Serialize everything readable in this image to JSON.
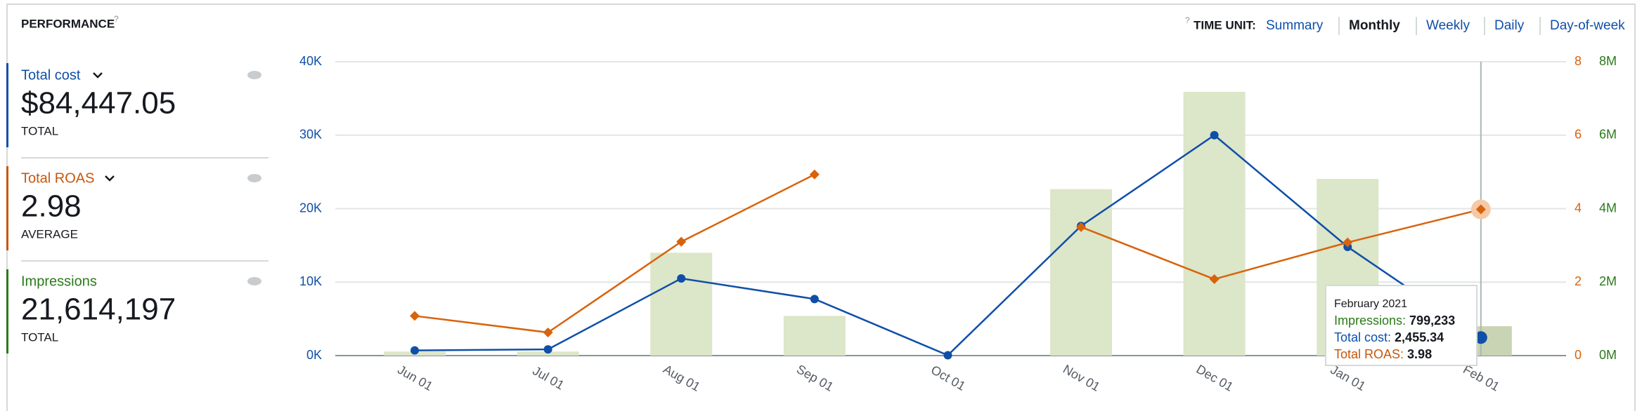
{
  "header": {
    "title": "PERFORMANCE",
    "help": "?",
    "time_unit_help": "?",
    "time_unit_label": "TIME UNIT:",
    "time_units": [
      "Summary",
      "Monthly",
      "Weekly",
      "Daily",
      "Day-of-week"
    ],
    "selected_time_unit": "Monthly"
  },
  "cards": [
    {
      "label": "Total cost",
      "value": "$84,447.05",
      "sub": "TOTAL",
      "color": "#0f4fa8"
    },
    {
      "label": "Total ROAS",
      "value": "2.98",
      "sub": "AVERAGE",
      "color": "#c7560b"
    },
    {
      "label": "Impressions",
      "value": "21,614,197",
      "sub": "TOTAL",
      "color": "#2a7a1a"
    }
  ],
  "tooltip": {
    "title": "February 2021",
    "rows": [
      {
        "label": "Impressions:",
        "value": "799,233",
        "color": "#2a7a1a"
      },
      {
        "label": "Total cost:",
        "value": "2,455.34",
        "color": "#0f4fa8"
      },
      {
        "label": "Total ROAS:",
        "value": "3.98",
        "color": "#c7560b"
      }
    ]
  },
  "chart_data": {
    "type": "combo",
    "categories": [
      "Jun 01",
      "Jul 01",
      "Aug 01",
      "Sep 01",
      "Oct 01",
      "Nov 01",
      "Dec 01",
      "Jan 01",
      "Feb 01"
    ],
    "series": [
      {
        "name": "Impressions",
        "type": "bar",
        "axis": "y3",
        "color": "#dce6c8",
        "values": [
          110000,
          110000,
          2800000,
          1080000,
          0,
          4530000,
          7180000,
          4810000,
          799233
        ]
      },
      {
        "name": "Total cost",
        "type": "line",
        "axis": "y",
        "color": "#0f4fa8",
        "values": [
          700,
          850,
          10500,
          7700,
          50,
          17650,
          30000,
          14800,
          2455.34
        ]
      },
      {
        "name": "Total ROAS",
        "type": "line",
        "axis": "y2",
        "color": "#d9620b",
        "values": [
          1.08,
          0.63,
          3.1,
          4.93,
          null,
          3.5,
          2.08,
          3.08,
          3.98
        ]
      }
    ],
    "ylim": [
      0,
      40000
    ],
    "yticks": [
      {
        "value": 0,
        "label": "0K"
      },
      {
        "value": 10000,
        "label": "10K"
      },
      {
        "value": 20000,
        "label": "20K"
      },
      {
        "value": 30000,
        "label": "30K"
      },
      {
        "value": 40000,
        "label": "40K"
      }
    ],
    "y2lim": [
      0,
      8
    ],
    "y2ticks": [
      0,
      2,
      4,
      6,
      8
    ],
    "y3lim": [
      0,
      8000000
    ],
    "y3ticks": [
      {
        "value": 0,
        "label": "0M"
      },
      {
        "value": 2000000,
        "label": "2M"
      },
      {
        "value": 4000000,
        "label": "4M"
      },
      {
        "value": 6000000,
        "label": "6M"
      },
      {
        "value": 8000000,
        "label": "8M"
      }
    ],
    "grid": true
  }
}
